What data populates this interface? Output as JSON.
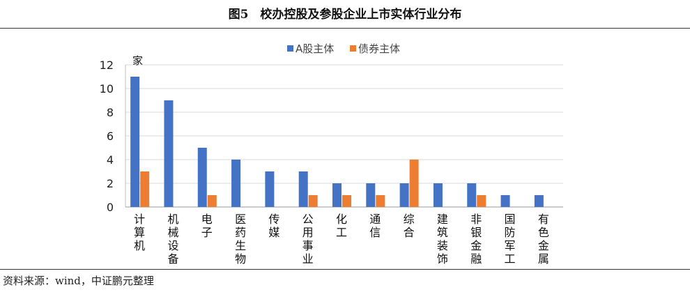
{
  "title": "图5　校办控股及参股企业上市实体行业分布",
  "source": "资料来源：wind，中证鹏元整理",
  "chart_data": {
    "type": "bar",
    "unit_label": "家",
    "categories": [
      "计算机",
      "机械设备",
      "电子",
      "医药生物",
      "传媒",
      "公用事业",
      "化工",
      "通信",
      "综合",
      "建筑装饰",
      "非银金融",
      "国防军工",
      "有色金属"
    ],
    "series": [
      {
        "name": "A股主体",
        "color": "#4472C4",
        "values": [
          11,
          9,
          5,
          4,
          3,
          3,
          2,
          2,
          2,
          2,
          2,
          1,
          1
        ]
      },
      {
        "name": "债券主体",
        "color": "#ED7D31",
        "values": [
          3,
          0,
          1,
          0,
          0,
          1,
          1,
          1,
          4,
          0,
          1,
          0,
          0
        ]
      }
    ],
    "ylim": [
      0,
      12
    ],
    "yticks": [
      0,
      2,
      4,
      6,
      8,
      10,
      12
    ],
    "grid": true,
    "legend": "top-center"
  }
}
